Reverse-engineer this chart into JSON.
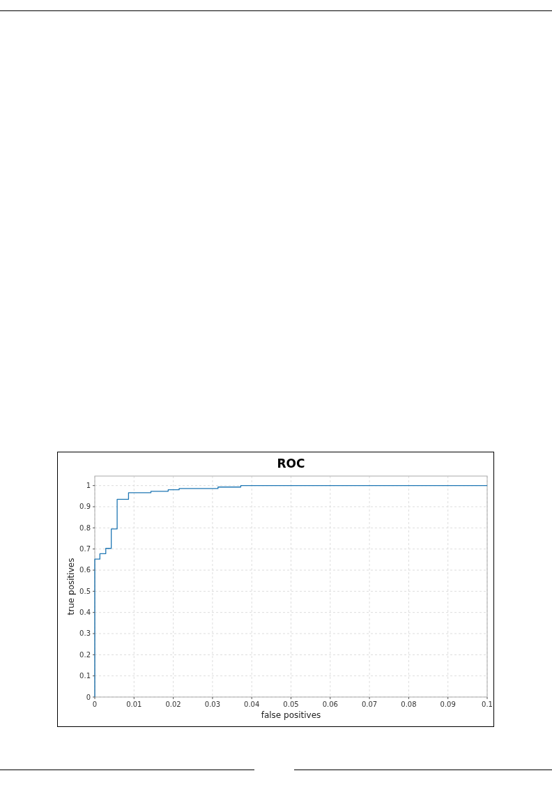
{
  "chart_data": {
    "type": "step",
    "title": "ROC",
    "xlabel": "false positives",
    "ylabel": "true positives",
    "x": [
      0,
      0,
      0.0013,
      0.0028,
      0.0042,
      0.0057,
      0.0086,
      0.0143,
      0.0187,
      0.0215,
      0.0314,
      0.0372,
      0.1
    ],
    "series": [
      {
        "color": "#1f77b4",
        "values": [
          0,
          0.652,
          0.678,
          0.703,
          0.795,
          0.935,
          0.966,
          0.973,
          0.98,
          0.986,
          0.993,
          1,
          1
        ]
      }
    ],
    "xlim": [
      0,
      0.1
    ],
    "xticks": [
      0,
      0.01,
      0.02,
      0.03,
      0.04,
      0.05,
      0.06,
      0.07,
      0.08,
      0.09,
      0.1
    ],
    "ylim": [
      0,
      1.045
    ],
    "yticks": [
      0,
      0.1,
      0.2,
      0.3,
      0.4,
      0.5,
      0.6,
      0.7,
      0.8,
      0.9,
      1
    ],
    "grid": true,
    "marker": "none",
    "line_style": "solid"
  }
}
